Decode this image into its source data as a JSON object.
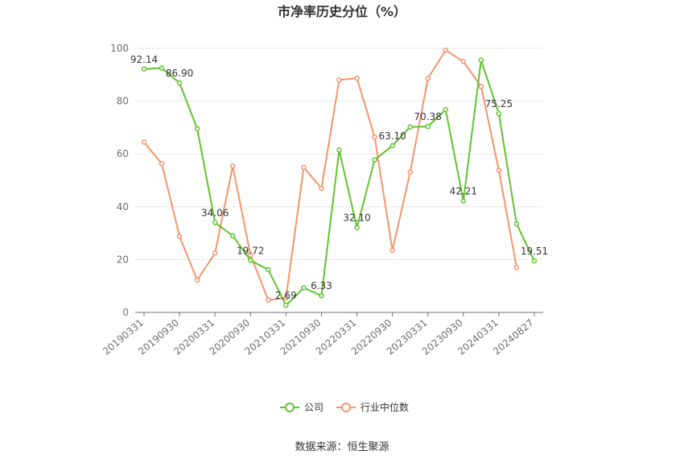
{
  "chart_data": {
    "type": "line",
    "title": "市净率历史分位（%）",
    "source": "数据来源：恒生聚源",
    "ylim": [
      0,
      100
    ],
    "yticks": [
      0,
      20,
      40,
      60,
      80,
      100
    ],
    "grid": true,
    "legend_position": "bottom",
    "x": [
      "20190331",
      "20190630",
      "20190930",
      "20191231",
      "20200331",
      "20200630",
      "20200930",
      "20201231",
      "20210331",
      "20210630",
      "20210930",
      "20211231",
      "20220331",
      "20220630",
      "20220930",
      "20221231",
      "20230331",
      "20230630",
      "20230930",
      "20231231",
      "20240331",
      "20240630",
      "20240827"
    ],
    "xtick_labels": [
      "20190331",
      "20190930",
      "20200331",
      "20200930",
      "20210331",
      "20210930",
      "20220331",
      "20220930",
      "20230331",
      "20230930",
      "20240331",
      "20240827"
    ],
    "series": [
      {
        "name": "公司",
        "color": "#5fc42e",
        "values": [
          92.14,
          92.5,
          86.9,
          69.5,
          34.06,
          29.0,
          19.72,
          16.2,
          2.69,
          9.3,
          6.33,
          61.5,
          32.1,
          57.8,
          63.1,
          70.2,
          70.38,
          76.8,
          42.21,
          95.5,
          75.25,
          33.5,
          19.51
        ]
      },
      {
        "name": "行业中位数",
        "color": "#f5936a",
        "values": [
          64.5,
          56.3,
          28.8,
          12.2,
          22.5,
          55.4,
          21.8,
          4.7,
          5.5,
          54.9,
          47.0,
          88.0,
          88.7,
          66.4,
          23.5,
          53.1,
          88.6,
          99.3,
          95.0,
          85.5,
          53.8,
          17.0,
          null
        ]
      }
    ],
    "data_labels": [
      {
        "index": 0,
        "text": "92.14"
      },
      {
        "index": 2,
        "text": "86.90"
      },
      {
        "index": 4,
        "text": "34.06"
      },
      {
        "index": 6,
        "text": "19.72"
      },
      {
        "index": 8,
        "text": "2.69"
      },
      {
        "index": 10,
        "text": "6.33"
      },
      {
        "index": 12,
        "text": "32.10"
      },
      {
        "index": 14,
        "text": "63.10"
      },
      {
        "index": 16,
        "text": "70.38"
      },
      {
        "index": 18,
        "text": "42.21"
      },
      {
        "index": 20,
        "text": "75.25"
      },
      {
        "index": 22,
        "text": "19.51"
      }
    ]
  }
}
